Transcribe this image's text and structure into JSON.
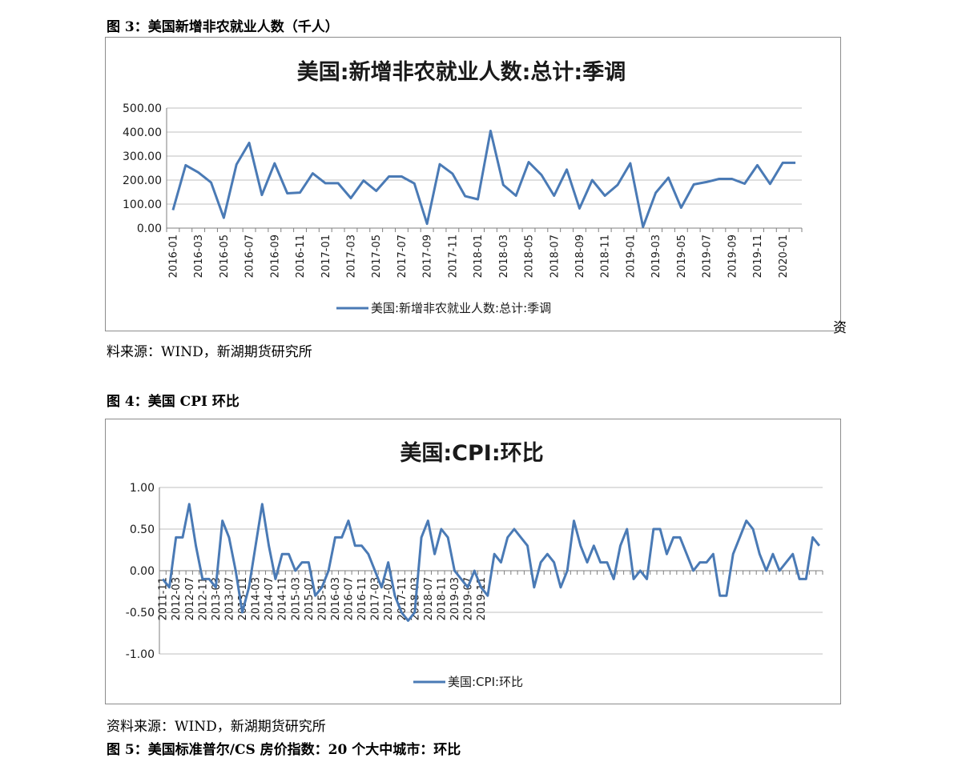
{
  "fig3": {
    "caption": "图 3：美国新增非农就业人数（千人）",
    "source_line1": "资",
    "source_line2": "料来源：WIND，新湖期货研究所"
  },
  "fig4": {
    "caption": "图 4：美国 CPI 环比",
    "source": "资料来源：WIND，新湖期货研究所"
  },
  "fig5": {
    "caption": "图 5：美国标准普尔/CS 房价指数：20 个大中城市：环比"
  },
  "colors": {
    "series": "#4a7ab5",
    "grid": "#bfbfbf",
    "axis": "#7f7f7f"
  },
  "chart_data": [
    {
      "type": "line",
      "title": "美国:新增非农就业人数:总计:季调",
      "legend": "美国:新增非农就业人数:总计:季调",
      "legend_position": "bottom",
      "grid": true,
      "ylim": [
        0,
        500
      ],
      "yticks": [
        "0.00",
        "100.00",
        "200.00",
        "300.00",
        "400.00",
        "500.00"
      ],
      "x_tick_labels": [
        "2016-01",
        "2016-03",
        "2016-05",
        "2016-07",
        "2016-09",
        "2016-11",
        "2017-01",
        "2017-03",
        "2017-05",
        "2017-07",
        "2017-09",
        "2017-11",
        "2018-01",
        "2018-03",
        "2018-05",
        "2018-07",
        "2018-09",
        "2018-11",
        "2019-01",
        "2019-03",
        "2019-05",
        "2019-07",
        "2019-09",
        "2019-11",
        "2020-01"
      ],
      "series": [
        {
          "name": "美国:新增非农就业人数:总计:季调",
          "values": [
            75,
            262,
            232,
            190,
            43,
            265,
            355,
            138,
            270,
            145,
            148,
            228,
            187,
            187,
            125,
            198,
            155,
            215,
            215,
            186,
            18,
            266,
            227,
            133,
            120,
            405,
            180,
            135,
            275,
            222,
            135,
            244,
            82,
            200,
            135,
            180,
            270,
            5,
            147,
            210,
            85,
            182,
            192,
            205,
            205,
            185,
            262,
            184,
            272,
            272
          ]
        }
      ]
    },
    {
      "type": "line",
      "title": "美国:CPI:环比",
      "legend": "美国:CPI:环比",
      "legend_position": "bottom",
      "grid": true,
      "ylim": [
        -1,
        1
      ],
      "yticks": [
        "-1.00",
        "-0.50",
        "0.00",
        "0.50",
        "1.00"
      ],
      "x_tick_labels": [
        "2011-11",
        "2012-03",
        "2012-07",
        "2012-11",
        "2013-03",
        "2013-07",
        "2013-11",
        "2014-03",
        "2014-07",
        "2014-11",
        "2015-03",
        "2015-07",
        "2015-11",
        "2016-03",
        "2016-07",
        "2016-11",
        "2017-03",
        "2017-07",
        "2017-11",
        "2018-03",
        "2018-07",
        "2018-11",
        "2019-03",
        "2019-07",
        "2019-11"
      ],
      "series": [
        {
          "name": "美国:CPI:环比",
          "values": [
            -0.1,
            -0.2,
            0.4,
            0.4,
            0.8,
            0.3,
            -0.1,
            -0.1,
            -0.2,
            0.6,
            0.4,
            0.0,
            -0.5,
            -0.2,
            0.3,
            0.8,
            0.3,
            -0.1,
            0.2,
            0.2,
            0.0,
            0.1,
            0.1,
            -0.3,
            -0.2,
            0.0,
            0.4,
            0.4,
            0.6,
            0.3,
            0.3,
            0.2,
            0.0,
            -0.2,
            0.1,
            -0.3,
            -0.5,
            -0.6,
            -0.5,
            0.4,
            0.6,
            0.2,
            0.5,
            0.4,
            0.0,
            -0.1,
            -0.2,
            0.0,
            -0.2,
            -0.3,
            0.2,
            0.1,
            0.4,
            0.5,
            0.4,
            0.3,
            -0.2,
            0.1,
            0.2,
            0.1,
            -0.2,
            0.0,
            0.6,
            0.3,
            0.1,
            0.3,
            0.1,
            0.1,
            -0.1,
            0.3,
            0.5,
            -0.1,
            0.0,
            -0.1,
            0.5,
            0.5,
            0.2,
            0.4,
            0.4,
            0.2,
            0.0,
            0.1,
            0.1,
            0.2,
            -0.3,
            -0.3,
            0.2,
            0.4,
            0.6,
            0.5,
            0.2,
            0.0,
            0.2,
            0.0,
            0.1,
            0.2,
            -0.1,
            -0.1,
            0.4,
            0.3
          ]
        }
      ]
    }
  ]
}
